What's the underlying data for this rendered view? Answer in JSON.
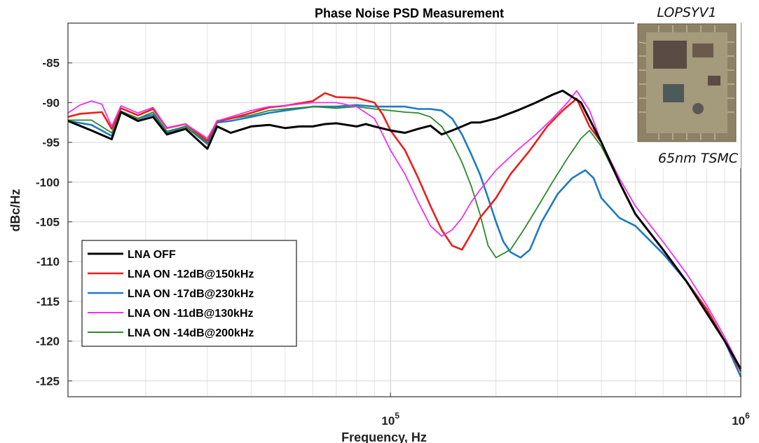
{
  "chart_data": {
    "type": "line",
    "title": "Phase Noise PSD Measurement",
    "xlabel": "Frequency, Hz",
    "ylabel": "dBc/Hz",
    "xscale": "log",
    "xlim": [
      12000,
      1000000
    ],
    "ylim": [
      -127,
      -80
    ],
    "x_tick_labels": [
      {
        "value": 100000,
        "base": "10",
        "exp": "5"
      },
      {
        "value": 1000000,
        "base": "10",
        "exp": "6"
      }
    ],
    "y_ticks": [
      -85,
      -90,
      -95,
      -100,
      -105,
      -110,
      -115,
      -120,
      -125
    ],
    "grid": true,
    "legend_position": "lower-left",
    "series": [
      {
        "name": "LNA OFF",
        "color": "#000000",
        "width": 3,
        "points": [
          [
            12000,
            -92.3
          ],
          [
            14000,
            -93.5
          ],
          [
            16000,
            -94.6
          ],
          [
            17000,
            -91.2
          ],
          [
            19000,
            -92.3
          ],
          [
            21000,
            -91.8
          ],
          [
            23000,
            -94.0
          ],
          [
            26000,
            -93.3
          ],
          [
            30000,
            -95.8
          ],
          [
            32000,
            -93.0
          ],
          [
            35000,
            -93.8
          ],
          [
            40000,
            -93.0
          ],
          [
            45000,
            -92.8
          ],
          [
            50000,
            -93.2
          ],
          [
            55000,
            -93.0
          ],
          [
            60000,
            -93.0
          ],
          [
            65000,
            -92.7
          ],
          [
            70000,
            -92.6
          ],
          [
            75000,
            -92.8
          ],
          [
            80000,
            -93.0
          ],
          [
            85000,
            -92.7
          ],
          [
            90000,
            -93.0
          ],
          [
            100000,
            -93.5
          ],
          [
            110000,
            -93.8
          ],
          [
            120000,
            -93.3
          ],
          [
            130000,
            -92.9
          ],
          [
            140000,
            -94.0
          ],
          [
            150000,
            -93.5
          ],
          [
            160000,
            -93.0
          ],
          [
            170000,
            -92.5
          ],
          [
            180000,
            -92.5
          ],
          [
            200000,
            -92.0
          ],
          [
            230000,
            -91.0
          ],
          [
            260000,
            -90.0
          ],
          [
            290000,
            -89.0
          ],
          [
            310000,
            -88.5
          ],
          [
            350000,
            -90.0
          ],
          [
            400000,
            -95.0
          ],
          [
            450000,
            -100.0
          ],
          [
            500000,
            -104.0
          ],
          [
            600000,
            -108.5
          ],
          [
            700000,
            -112.5
          ],
          [
            800000,
            -116.5
          ],
          [
            900000,
            -120.0
          ],
          [
            1000000,
            -123.5
          ]
        ]
      },
      {
        "name": "LNA ON -12dB@150kHz",
        "color": "#e8201c",
        "width": 2.6,
        "points": [
          [
            12000,
            -91.8
          ],
          [
            13000,
            -91.4
          ],
          [
            15000,
            -91.2
          ],
          [
            16000,
            -93.3
          ],
          [
            17000,
            -90.7
          ],
          [
            19000,
            -91.6
          ],
          [
            21000,
            -90.8
          ],
          [
            23000,
            -93.2
          ],
          [
            26000,
            -92.7
          ],
          [
            30000,
            -94.8
          ],
          [
            32000,
            -92.3
          ],
          [
            35000,
            -92.0
          ],
          [
            40000,
            -91.3
          ],
          [
            45000,
            -90.6
          ],
          [
            50000,
            -90.4
          ],
          [
            60000,
            -89.8
          ],
          [
            65000,
            -88.8
          ],
          [
            70000,
            -89.3
          ],
          [
            80000,
            -89.4
          ],
          [
            90000,
            -90.0
          ],
          [
            95000,
            -91.5
          ],
          [
            100000,
            -93.5
          ],
          [
            110000,
            -96.0
          ],
          [
            120000,
            -99.5
          ],
          [
            130000,
            -103.0
          ],
          [
            140000,
            -106.0
          ],
          [
            150000,
            -108.0
          ],
          [
            160000,
            -108.5
          ],
          [
            170000,
            -106.5
          ],
          [
            180000,
            -104.5
          ],
          [
            200000,
            -102.0
          ],
          [
            220000,
            -99.0
          ],
          [
            250000,
            -96.0
          ],
          [
            280000,
            -93.0
          ],
          [
            310000,
            -91.0
          ],
          [
            340000,
            -89.5
          ],
          [
            370000,
            -93.0
          ],
          [
            400000,
            -95.0
          ],
          [
            450000,
            -100.0
          ],
          [
            500000,
            -104.0
          ],
          [
            600000,
            -108.5
          ],
          [
            700000,
            -112.5
          ],
          [
            800000,
            -116.0
          ],
          [
            900000,
            -120.0
          ],
          [
            1000000,
            -123.8
          ]
        ]
      },
      {
        "name": "LNA ON -17dB@230kHz",
        "color": "#1f7ac4",
        "width": 2.6,
        "points": [
          [
            12000,
            -92.3
          ],
          [
            14000,
            -92.8
          ],
          [
            16000,
            -94.2
          ],
          [
            17000,
            -91.1
          ],
          [
            19000,
            -92.0
          ],
          [
            21000,
            -91.5
          ],
          [
            23000,
            -93.8
          ],
          [
            26000,
            -93.0
          ],
          [
            30000,
            -95.2
          ],
          [
            32000,
            -92.5
          ],
          [
            35000,
            -92.3
          ],
          [
            40000,
            -91.8
          ],
          [
            45000,
            -91.3
          ],
          [
            50000,
            -91.0
          ],
          [
            60000,
            -90.5
          ],
          [
            70000,
            -90.5
          ],
          [
            80000,
            -90.3
          ],
          [
            90000,
            -90.5
          ],
          [
            100000,
            -90.5
          ],
          [
            110000,
            -90.5
          ],
          [
            120000,
            -90.8
          ],
          [
            130000,
            -90.8
          ],
          [
            140000,
            -91.0
          ],
          [
            150000,
            -92.0
          ],
          [
            160000,
            -94.0
          ],
          [
            170000,
            -96.5
          ],
          [
            180000,
            -99.0
          ],
          [
            190000,
            -102.0
          ],
          [
            200000,
            -105.0
          ],
          [
            210000,
            -107.5
          ],
          [
            220000,
            -108.8
          ],
          [
            235000,
            -109.5
          ],
          [
            250000,
            -108.5
          ],
          [
            270000,
            -105.0
          ],
          [
            300000,
            -101.5
          ],
          [
            330000,
            -99.5
          ],
          [
            360000,
            -98.5
          ],
          [
            380000,
            -99.5
          ],
          [
            400000,
            -102.0
          ],
          [
            450000,
            -104.5
          ],
          [
            500000,
            -105.5
          ],
          [
            600000,
            -109.0
          ],
          [
            700000,
            -112.5
          ],
          [
            800000,
            -116.0
          ],
          [
            900000,
            -120.0
          ],
          [
            1000000,
            -124.5
          ]
        ]
      },
      {
        "name": "LNA ON -11dB@130kHz",
        "color": "#f030f0",
        "width": 1.8,
        "points": [
          [
            12000,
            -91.3
          ],
          [
            13000,
            -90.3
          ],
          [
            14000,
            -89.8
          ],
          [
            15000,
            -90.2
          ],
          [
            16000,
            -93.0
          ],
          [
            17000,
            -90.4
          ],
          [
            19000,
            -91.3
          ],
          [
            21000,
            -90.6
          ],
          [
            23000,
            -93.2
          ],
          [
            26000,
            -92.7
          ],
          [
            30000,
            -94.5
          ],
          [
            32000,
            -92.3
          ],
          [
            35000,
            -91.8
          ],
          [
            40000,
            -91.0
          ],
          [
            45000,
            -90.5
          ],
          [
            50000,
            -90.4
          ],
          [
            60000,
            -90.0
          ],
          [
            70000,
            -90.0
          ],
          [
            80000,
            -90.5
          ],
          [
            90000,
            -92.0
          ],
          [
            95000,
            -94.0
          ],
          [
            100000,
            -96.0
          ],
          [
            110000,
            -99.0
          ],
          [
            120000,
            -102.5
          ],
          [
            130000,
            -105.5
          ],
          [
            140000,
            -106.8
          ],
          [
            150000,
            -106.0
          ],
          [
            160000,
            -104.5
          ],
          [
            170000,
            -102.5
          ],
          [
            180000,
            -101.0
          ],
          [
            200000,
            -98.5
          ],
          [
            230000,
            -96.0
          ],
          [
            260000,
            -94.0
          ],
          [
            290000,
            -92.0
          ],
          [
            320000,
            -90.0
          ],
          [
            340000,
            -88.5
          ],
          [
            370000,
            -91.0
          ],
          [
            400000,
            -95.0
          ],
          [
            450000,
            -99.5
          ],
          [
            500000,
            -103.0
          ],
          [
            600000,
            -107.5
          ],
          [
            700000,
            -111.5
          ],
          [
            800000,
            -115.5
          ],
          [
            900000,
            -119.5
          ],
          [
            1000000,
            -123.5
          ]
        ]
      },
      {
        "name": "LNA ON -14dB@200kHz",
        "color": "#2a8a2a",
        "width": 1.8,
        "points": [
          [
            12000,
            -92.2
          ],
          [
            14000,
            -92.2
          ],
          [
            16000,
            -93.8
          ],
          [
            17000,
            -91.1
          ],
          [
            19000,
            -92.0
          ],
          [
            21000,
            -91.2
          ],
          [
            23000,
            -93.6
          ],
          [
            26000,
            -93.0
          ],
          [
            30000,
            -95.0
          ],
          [
            32000,
            -92.4
          ],
          [
            35000,
            -92.0
          ],
          [
            40000,
            -91.6
          ],
          [
            45000,
            -91.0
          ],
          [
            50000,
            -90.8
          ],
          [
            60000,
            -90.5
          ],
          [
            70000,
            -90.7
          ],
          [
            80000,
            -90.5
          ],
          [
            90000,
            -90.8
          ],
          [
            100000,
            -91.0
          ],
          [
            110000,
            -91.2
          ],
          [
            120000,
            -91.3
          ],
          [
            130000,
            -91.8
          ],
          [
            140000,
            -93.0
          ],
          [
            150000,
            -95.0
          ],
          [
            160000,
            -97.5
          ],
          [
            170000,
            -100.5
          ],
          [
            180000,
            -104.0
          ],
          [
            190000,
            -108.0
          ],
          [
            200000,
            -109.5
          ],
          [
            220000,
            -108.5
          ],
          [
            240000,
            -106.0
          ],
          [
            260000,
            -103.5
          ],
          [
            290000,
            -100.0
          ],
          [
            320000,
            -97.0
          ],
          [
            350000,
            -94.5
          ],
          [
            370000,
            -93.5
          ],
          [
            400000,
            -95.5
          ],
          [
            450000,
            -100.0
          ],
          [
            500000,
            -104.0
          ],
          [
            600000,
            -108.5
          ],
          [
            700000,
            -112.5
          ],
          [
            800000,
            -116.0
          ],
          [
            900000,
            -120.0
          ],
          [
            1000000,
            -123.8
          ]
        ]
      }
    ],
    "annotations": {
      "chip_top": "LOPSYV1",
      "chip_bottom": "65nm TSMC"
    }
  }
}
